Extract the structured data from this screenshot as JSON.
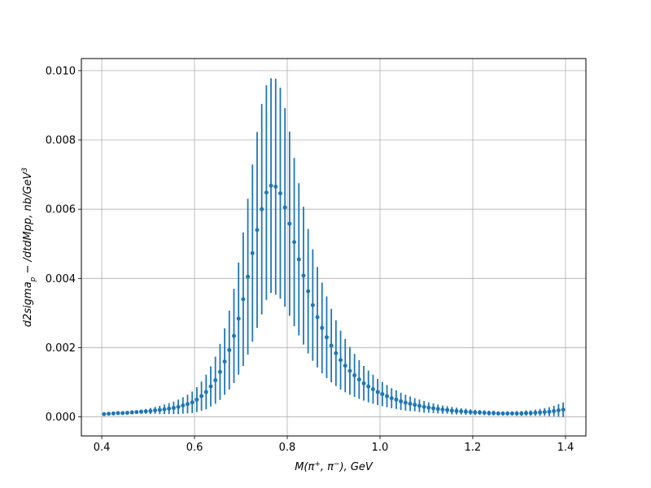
{
  "chart_data": {
    "type": "scatter",
    "errorbars": true,
    "title": "",
    "xlabel": "M(π+, π−), GeV",
    "xlabel_parts": {
      "pre": "M(π",
      "sup1": "+",
      "mid": ", π",
      "sup2": "−",
      "post": "), GeV"
    },
    "ylabel": "d2sigma_p − /dtdMpp, nb/GeV^3",
    "ylabel_parts": {
      "pre": "d2sigma",
      "sub": "p",
      "mid": " − /dtdMpp, nb/GeV",
      "sup": "3"
    },
    "xlim": [
      0.356,
      1.444
    ],
    "ylim": [
      -0.00055,
      0.01035
    ],
    "xticks": [
      0.4,
      0.6,
      0.8,
      1.0,
      1.2,
      1.4
    ],
    "xtick_labels": [
      "0.4",
      "0.6",
      "0.8",
      "1.0",
      "1.2",
      "1.4"
    ],
    "yticks": [
      0.0,
      0.002,
      0.004,
      0.006,
      0.008,
      0.01
    ],
    "ytick_labels": [
      "0.000",
      "0.002",
      "0.004",
      "0.006",
      "0.008",
      "0.010"
    ],
    "grid": true,
    "color": "#1f77b4",
    "x": [
      0.405,
      0.415,
      0.425,
      0.435,
      0.445,
      0.455,
      0.465,
      0.475,
      0.485,
      0.495,
      0.505,
      0.515,
      0.525,
      0.535,
      0.545,
      0.555,
      0.565,
      0.575,
      0.585,
      0.595,
      0.605,
      0.615,
      0.625,
      0.635,
      0.645,
      0.655,
      0.665,
      0.675,
      0.685,
      0.695,
      0.705,
      0.715,
      0.725,
      0.735,
      0.745,
      0.755,
      0.765,
      0.775,
      0.785,
      0.795,
      0.805,
      0.815,
      0.825,
      0.835,
      0.845,
      0.855,
      0.865,
      0.875,
      0.885,
      0.895,
      0.905,
      0.915,
      0.925,
      0.935,
      0.945,
      0.955,
      0.965,
      0.975,
      0.985,
      0.995,
      1.005,
      1.015,
      1.025,
      1.035,
      1.045,
      1.055,
      1.065,
      1.075,
      1.085,
      1.095,
      1.105,
      1.115,
      1.125,
      1.135,
      1.145,
      1.155,
      1.165,
      1.175,
      1.185,
      1.195,
      1.205,
      1.215,
      1.225,
      1.235,
      1.245,
      1.255,
      1.265,
      1.275,
      1.285,
      1.295,
      1.305,
      1.315,
      1.325,
      1.335,
      1.345,
      1.355,
      1.365,
      1.375,
      1.385,
      1.395
    ],
    "y": [
      8e-05,
      9e-05,
      0.0001,
      0.00011,
      0.00011,
      0.00012,
      0.00013,
      0.00014,
      0.00015,
      0.00016,
      0.00017,
      0.00019,
      0.0002,
      0.00022,
      0.00024,
      0.00026,
      0.00029,
      0.00033,
      0.00037,
      0.00042,
      0.0005,
      0.0006,
      0.00072,
      0.00088,
      0.00106,
      0.0013,
      0.0016,
      0.00193,
      0.00234,
      0.00284,
      0.0034,
      0.00405,
      0.00473,
      0.0054,
      0.006,
      0.00648,
      0.00668,
      0.00665,
      0.00646,
      0.00605,
      0.00558,
      0.00505,
      0.00455,
      0.00408,
      0.00363,
      0.00323,
      0.00288,
      0.00257,
      0.0023,
      0.00206,
      0.00184,
      0.00164,
      0.00148,
      0.00133,
      0.0012,
      0.00108,
      0.00097,
      0.00088,
      0.0008,
      0.00072,
      0.00066,
      0.0006,
      0.00054,
      0.0005,
      0.00045,
      0.00041,
      0.00038,
      0.00035,
      0.00032,
      0.00029,
      0.00027,
      0.00025,
      0.00023,
      0.00021,
      0.0002,
      0.00018,
      0.00017,
      0.00016,
      0.00015,
      0.00014,
      0.00013,
      0.00013,
      0.00012,
      0.00011,
      0.00011,
      0.0001,
      0.0001,
      0.0001,
      0.0001,
      0.0001,
      0.0001,
      0.00011,
      0.00011,
      0.00012,
      0.00013,
      0.00014,
      0.00015,
      0.00017,
      0.00019,
      0.00021
    ],
    "yerr": [
      3e-05,
      3e-05,
      3e-05,
      4e-05,
      4e-05,
      4e-05,
      5e-05,
      5e-05,
      6e-05,
      7e-05,
      9e-05,
      0.0001,
      0.00012,
      0.00014,
      0.00016,
      0.00018,
      0.00021,
      0.00024,
      0.00027,
      0.00031,
      0.00036,
      0.00042,
      0.0005,
      0.00058,
      0.00068,
      0.00081,
      0.00096,
      0.00114,
      0.00136,
      0.00162,
      0.00193,
      0.00225,
      0.00256,
      0.00283,
      0.00304,
      0.0031,
      0.0031,
      0.00312,
      0.00305,
      0.00287,
      0.00266,
      0.00243,
      0.0022,
      0.00199,
      0.0018,
      0.00161,
      0.00145,
      0.00131,
      0.00118,
      0.00106,
      0.00095,
      0.00085,
      0.00077,
      0.00069,
      0.00062,
      0.00056,
      0.0005,
      0.00046,
      0.00042,
      0.00038,
      0.00035,
      0.00032,
      0.00029,
      0.00027,
      0.00025,
      0.00023,
      0.00021,
      0.00019,
      0.00018,
      0.00017,
      0.00015,
      0.00014,
      0.00013,
      0.00012,
      0.00011,
      0.00011,
      0.0001,
      9e-05,
      9e-05,
      8e-05,
      8e-05,
      7e-05,
      7e-05,
      7e-05,
      7e-05,
      6e-05,
      6e-05,
      6e-05,
      6e-05,
      7e-05,
      7e-05,
      8e-05,
      8e-05,
      9e-05,
      0.0001,
      0.00011,
      0.00013,
      0.00015,
      0.00018,
      0.00021
    ]
  }
}
